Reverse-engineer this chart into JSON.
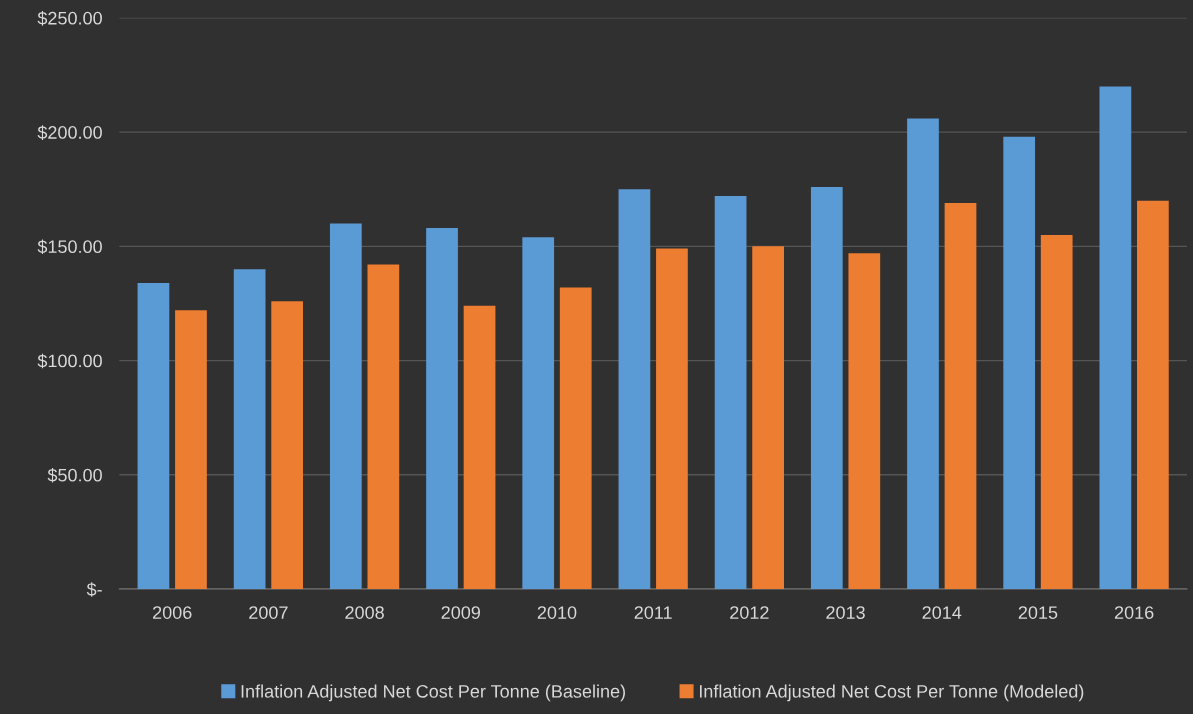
{
  "chart_data": {
    "type": "bar",
    "categories": [
      "2006",
      "2007",
      "2008",
      "2009",
      "2010",
      "2011",
      "2012",
      "2013",
      "2014",
      "2015",
      "2016"
    ],
    "series": [
      {
        "name": "Inflation Adjusted Net Cost Per Tonne (Baseline)",
        "color": "#5b9bd5",
        "values": [
          134,
          140,
          160,
          158,
          154,
          175,
          172,
          176,
          206,
          198,
          220
        ]
      },
      {
        "name": "Inflation Adjusted Net Cost Per Tonne (Modeled)",
        "color": "#ed7d31",
        "values": [
          122,
          126,
          142,
          124,
          132,
          149,
          150,
          147,
          169,
          155,
          170
        ]
      }
    ],
    "ylim": [
      0,
      250
    ],
    "yticks": [
      {
        "value": 0,
        "label": "$-"
      },
      {
        "value": 50,
        "label": "$50.00"
      },
      {
        "value": 100,
        "label": "$100.00"
      },
      {
        "value": 150,
        "label": "$150.00"
      },
      {
        "value": 200,
        "label": "$200.00"
      },
      {
        "value": 250,
        "label": "$250.00"
      }
    ],
    "grid": "y",
    "legend": "bottom"
  }
}
